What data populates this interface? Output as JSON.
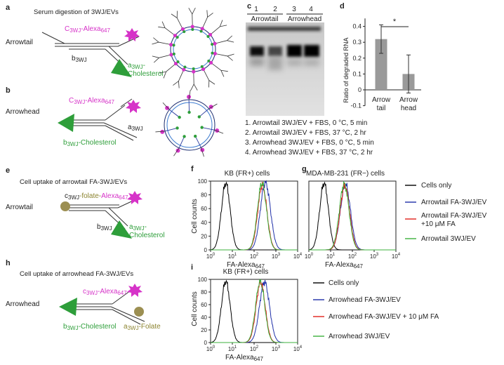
{
  "panel_a": {
    "letter": "a",
    "title": "Serum digestion of 3WJ/EVs",
    "construct": "Arrowtail",
    "c_label": "C",
    "c_sub": "3WJ",
    "c_alexa": "-Alexa",
    "c_alexa_sub": "647",
    "b_label": "b",
    "b_sub": "3WJ",
    "a_label": "a",
    "a_sub": "3WJ",
    "a_dash": "-",
    "a_chol": "Cholesterol"
  },
  "panel_b": {
    "letter": "b",
    "construct": "Arrowhead",
    "c_label": "C",
    "c_sub": "3WJ",
    "c_alexa": "-Alexa",
    "c_alexa_sub": "647",
    "a_label": "a",
    "a_sub": "3WJ",
    "b_label": "b",
    "b_sub": "3WJ",
    "b_chol": "-Cholesterol"
  },
  "panel_c": {
    "letter": "c",
    "lanes": [
      "1",
      "2",
      "3",
      "4"
    ],
    "group_left": "Arrowtail",
    "group_right": "Arrowhead",
    "legend": [
      "1. Arrowtail 3WJ/EV + FBS, 0 °C, 5 min",
      "2. Arrowtail 3WJ/EV + FBS, 37 °C, 2 hr",
      "3. Arrowhead 3WJ/EV + FBS, 0 °C, 5 min",
      "4. Arrowhead 3WJ/EV + FBS, 37 °C, 2 hr"
    ]
  },
  "panel_d": {
    "letter": "d",
    "significance": "*",
    "ylabel": "Ratio of degraded RNA",
    "yticks": [
      "0.4",
      "0.3",
      "0.2",
      "0.1",
      "0",
      "-0.1"
    ],
    "cat1_line1": "Arrow",
    "cat1_line2": "tail",
    "cat2_line1": "Arrow",
    "cat2_line2": "head"
  },
  "panel_e": {
    "letter": "e",
    "title": "Cell uptake of arrowtail FA-3WJ/EVs",
    "construct": "Arrowtail",
    "c_label": "c",
    "c_sub": "3WJ",
    "c_folate": "-folate-",
    "c_alexa": "Alexa",
    "c_alexa_sub": "647",
    "b_label": "b",
    "b_sub": "3WJ",
    "a_label": "a",
    "a_sub": "3WJ",
    "a_dash": "-",
    "a_chol": "Cholesterol"
  },
  "panel_f": {
    "letter": "f",
    "title": "KB (FR+) cells"
  },
  "panel_g": {
    "letter": "g",
    "title": "MDA-MB-231 (FR−) cells"
  },
  "panel_h": {
    "letter": "h",
    "title": "Cell uptake of arrowhead FA-3WJ/EVs",
    "construct": "Arrowhead",
    "c_label": "c",
    "c_sub": "3WJ",
    "c_alexa": "-Alexa",
    "c_alexa_sub": "647",
    "b_label": "b",
    "b_sub": "3WJ",
    "b_chol": "-Cholesterol",
    "a_label": "a",
    "a_sub": "3WJ",
    "a_folate": "-Folate"
  },
  "panel_i": {
    "letter": "i",
    "title": "KB (FR+) cells"
  },
  "flow_axes": {
    "ylabel": "Cell counts",
    "xlabel": "FA-Alexa",
    "xlabel_sub": "647",
    "yticks": [
      "100",
      "80",
      "60",
      "40",
      "20",
      "0"
    ],
    "xticks_base": [
      "10",
      "10",
      "10",
      "10",
      "10"
    ],
    "xticks_exp": [
      "0",
      "1",
      "2",
      "3",
      "4"
    ]
  },
  "legend_top": [
    {
      "color": "#000000",
      "line1": "Cells only",
      "line2": ""
    },
    {
      "color": "#1f2fa8",
      "line1": "Arrowtail FA-3WJ/EV",
      "line2": ""
    },
    {
      "color": "#e0211d",
      "line1": "Arrowtail FA-3WJ/EV",
      "line2": "+10 μM FA"
    },
    {
      "color": "#3cb03c",
      "line1": "Arrowtail 3WJ/EV",
      "line2": ""
    }
  ],
  "legend_bottom": [
    {
      "color": "#000000",
      "label": "Cells only"
    },
    {
      "color": "#1f2fa8",
      "label": "Arrowhead FA-3WJ/EV"
    },
    {
      "color": "#e0211d",
      "label": "Arrowhead FA-3WJ/EV + 10 μM FA"
    },
    {
      "color": "#3cb03c",
      "label": "Arrowhead 3WJ/EV"
    }
  ],
  "chart_data": [
    {
      "type": "bar",
      "panel": "d",
      "categories": [
        "Arrow tail",
        "Arrow head"
      ],
      "values": [
        0.32,
        0.1
      ],
      "errors": [
        0.09,
        0.12
      ],
      "ylabel": "Ratio of degraded RNA",
      "ylim": [
        -0.1,
        0.45
      ],
      "color": "#9a9a9a"
    },
    {
      "type": "line",
      "panel": "f",
      "title": "KB (FR+) cells",
      "xlabel": "FA-Alexa647",
      "ylabel": "Cell counts",
      "xscale": "log",
      "xlim": [
        1,
        10000
      ],
      "ylim": [
        0,
        100
      ],
      "series": [
        {
          "name": "Cells only",
          "color": "#000000",
          "peak_x": 5,
          "peak_y": 97,
          "width": 0.2
        },
        {
          "name": "Arrowtail FA-3WJ/EV",
          "color": "#1f2fa8",
          "peak_x": 330,
          "peak_y": 98,
          "width": 0.23
        },
        {
          "name": "Arrowtail FA-3WJ/EV +10 μM FA",
          "color": "#e0211d",
          "peak_x": 240,
          "peak_y": 94,
          "width": 0.21
        },
        {
          "name": "Arrowtail 3WJ/EV",
          "color": "#3cb03c",
          "peak_x": 230,
          "peak_y": 97,
          "width": 0.21
        }
      ]
    },
    {
      "type": "line",
      "panel": "g",
      "title": "MDA-MB-231 (FR−) cells",
      "xlabel": "FA-Alexa647",
      "xscale": "log",
      "xlim": [
        1,
        10000
      ],
      "ylim": [
        0,
        100
      ],
      "series": [
        {
          "name": "Cells only",
          "color": "#000000",
          "peak_x": 5,
          "peak_y": 97,
          "width": 0.2
        },
        {
          "name": "Arrowtail FA-3WJ/EV",
          "color": "#1f2fa8",
          "peak_x": 48,
          "peak_y": 95,
          "width": 0.23
        },
        {
          "name": "Arrowtail FA-3WJ/EV +10 μM FA",
          "color": "#e0211d",
          "peak_x": 45,
          "peak_y": 93,
          "width": 0.22
        },
        {
          "name": "Arrowtail 3WJ/EV",
          "color": "#3cb03c",
          "peak_x": 42,
          "peak_y": 96,
          "width": 0.22
        }
      ]
    },
    {
      "type": "line",
      "panel": "i",
      "title": "KB (FR+) cells",
      "xlabel": "FA-Alexa647",
      "ylabel": "Cell counts",
      "xscale": "log",
      "xlim": [
        1,
        10000
      ],
      "ylim": [
        0,
        100
      ],
      "series": [
        {
          "name": "Cells only",
          "color": "#000000",
          "peak_x": 5,
          "peak_y": 97,
          "width": 0.2
        },
        {
          "name": "Arrowhead FA-3WJ/EV",
          "color": "#1f2fa8",
          "peak_x": 300,
          "peak_y": 96,
          "width": 0.23
        },
        {
          "name": "Arrowhead FA-3WJ/EV + 10 μM FA",
          "color": "#e0211d",
          "peak_x": 200,
          "peak_y": 95,
          "width": 0.21
        },
        {
          "name": "Arrowhead 3WJ/EV",
          "color": "#3cb03c",
          "peak_x": 190,
          "peak_y": 97,
          "width": 0.21
        }
      ]
    }
  ]
}
